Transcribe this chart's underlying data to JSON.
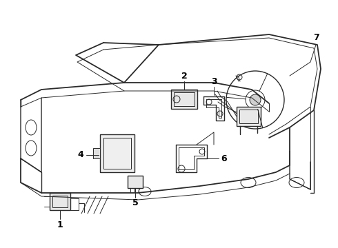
{
  "background_color": "#ffffff",
  "line_color": "#2a2a2a",
  "label_color": "#000000",
  "figsize": [
    4.9,
    3.6
  ],
  "dpi": 100,
  "lw_main": 1.3,
  "lw_thin": 0.7,
  "lw_med": 1.0
}
